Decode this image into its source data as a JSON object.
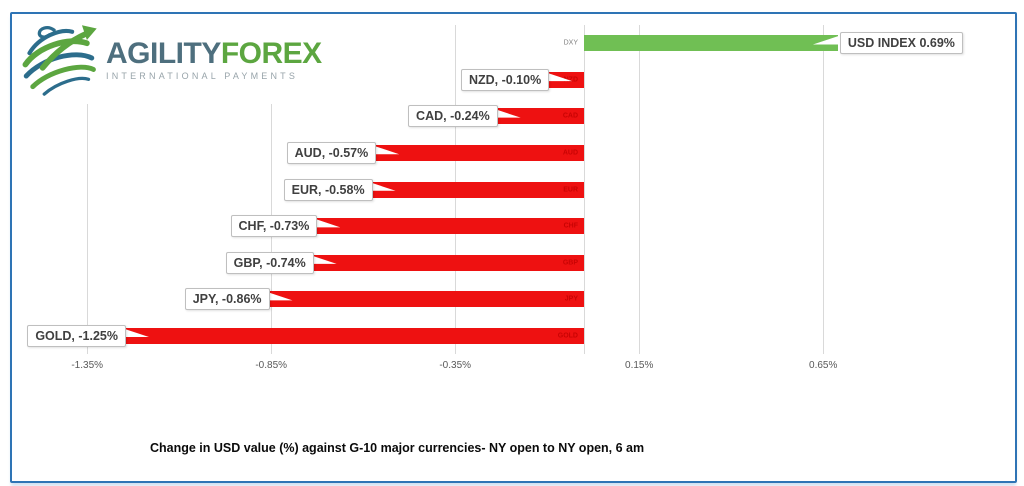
{
  "logo": {
    "brand_primary": "AGILITY",
    "brand_secondary": "FOREX",
    "tagline": "INTERNATIONAL PAYMENTS"
  },
  "caption": "Change in  USD value (%)  against  G-10 major currencies- NY open to NY open, 6 am",
  "colors": {
    "positive_bar": "#70BF54",
    "negative_bar": "#EE1111",
    "frame_border": "#2E74B5",
    "gridline": "#D9D9D9",
    "tick_text": "#595959",
    "callout_text": "#404040",
    "callout_border": "#BFBFBF",
    "axis_category_text": "#7F7F7F",
    "inside_bar_text": "#C00000",
    "brand_primary_color": "#4E6F7E",
    "brand_secondary_color": "#5CA640",
    "tagline_color": "#98A4AA"
  },
  "chart_data": {
    "type": "bar",
    "orientation": "horizontal",
    "title": "Change in  USD value (%)  against  G-10 major currencies- NY open to NY open, 6 am",
    "categories": [
      "DXY",
      "NZD",
      "CAD",
      "AUD",
      "EUR",
      "CHF",
      "GBP",
      "JPY",
      "GOLD"
    ],
    "values": [
      0.69,
      -0.1,
      -0.24,
      -0.57,
      -0.58,
      -0.73,
      -0.74,
      -0.86,
      -1.25
    ],
    "data_labels": [
      "USD INDEX 0.69%",
      "NZD, -0.10%",
      "CAD, -0.24%",
      "AUD, -0.57%",
      "EUR, -0.58%",
      "CHF, -0.73%",
      "GBP, -0.74%",
      "JPY, -0.86%",
      "GOLD, -1.25%"
    ],
    "x_tick_labels": [
      "-1.35%",
      "-0.85%",
      "-0.35%",
      "0.15%",
      "0.65%"
    ],
    "x_tick_values": [
      -1.35,
      -0.85,
      -0.35,
      0.15,
      0.65
    ],
    "xlim": [
      -1.57,
      1.18
    ],
    "grid": "vertical",
    "legend": false
  }
}
